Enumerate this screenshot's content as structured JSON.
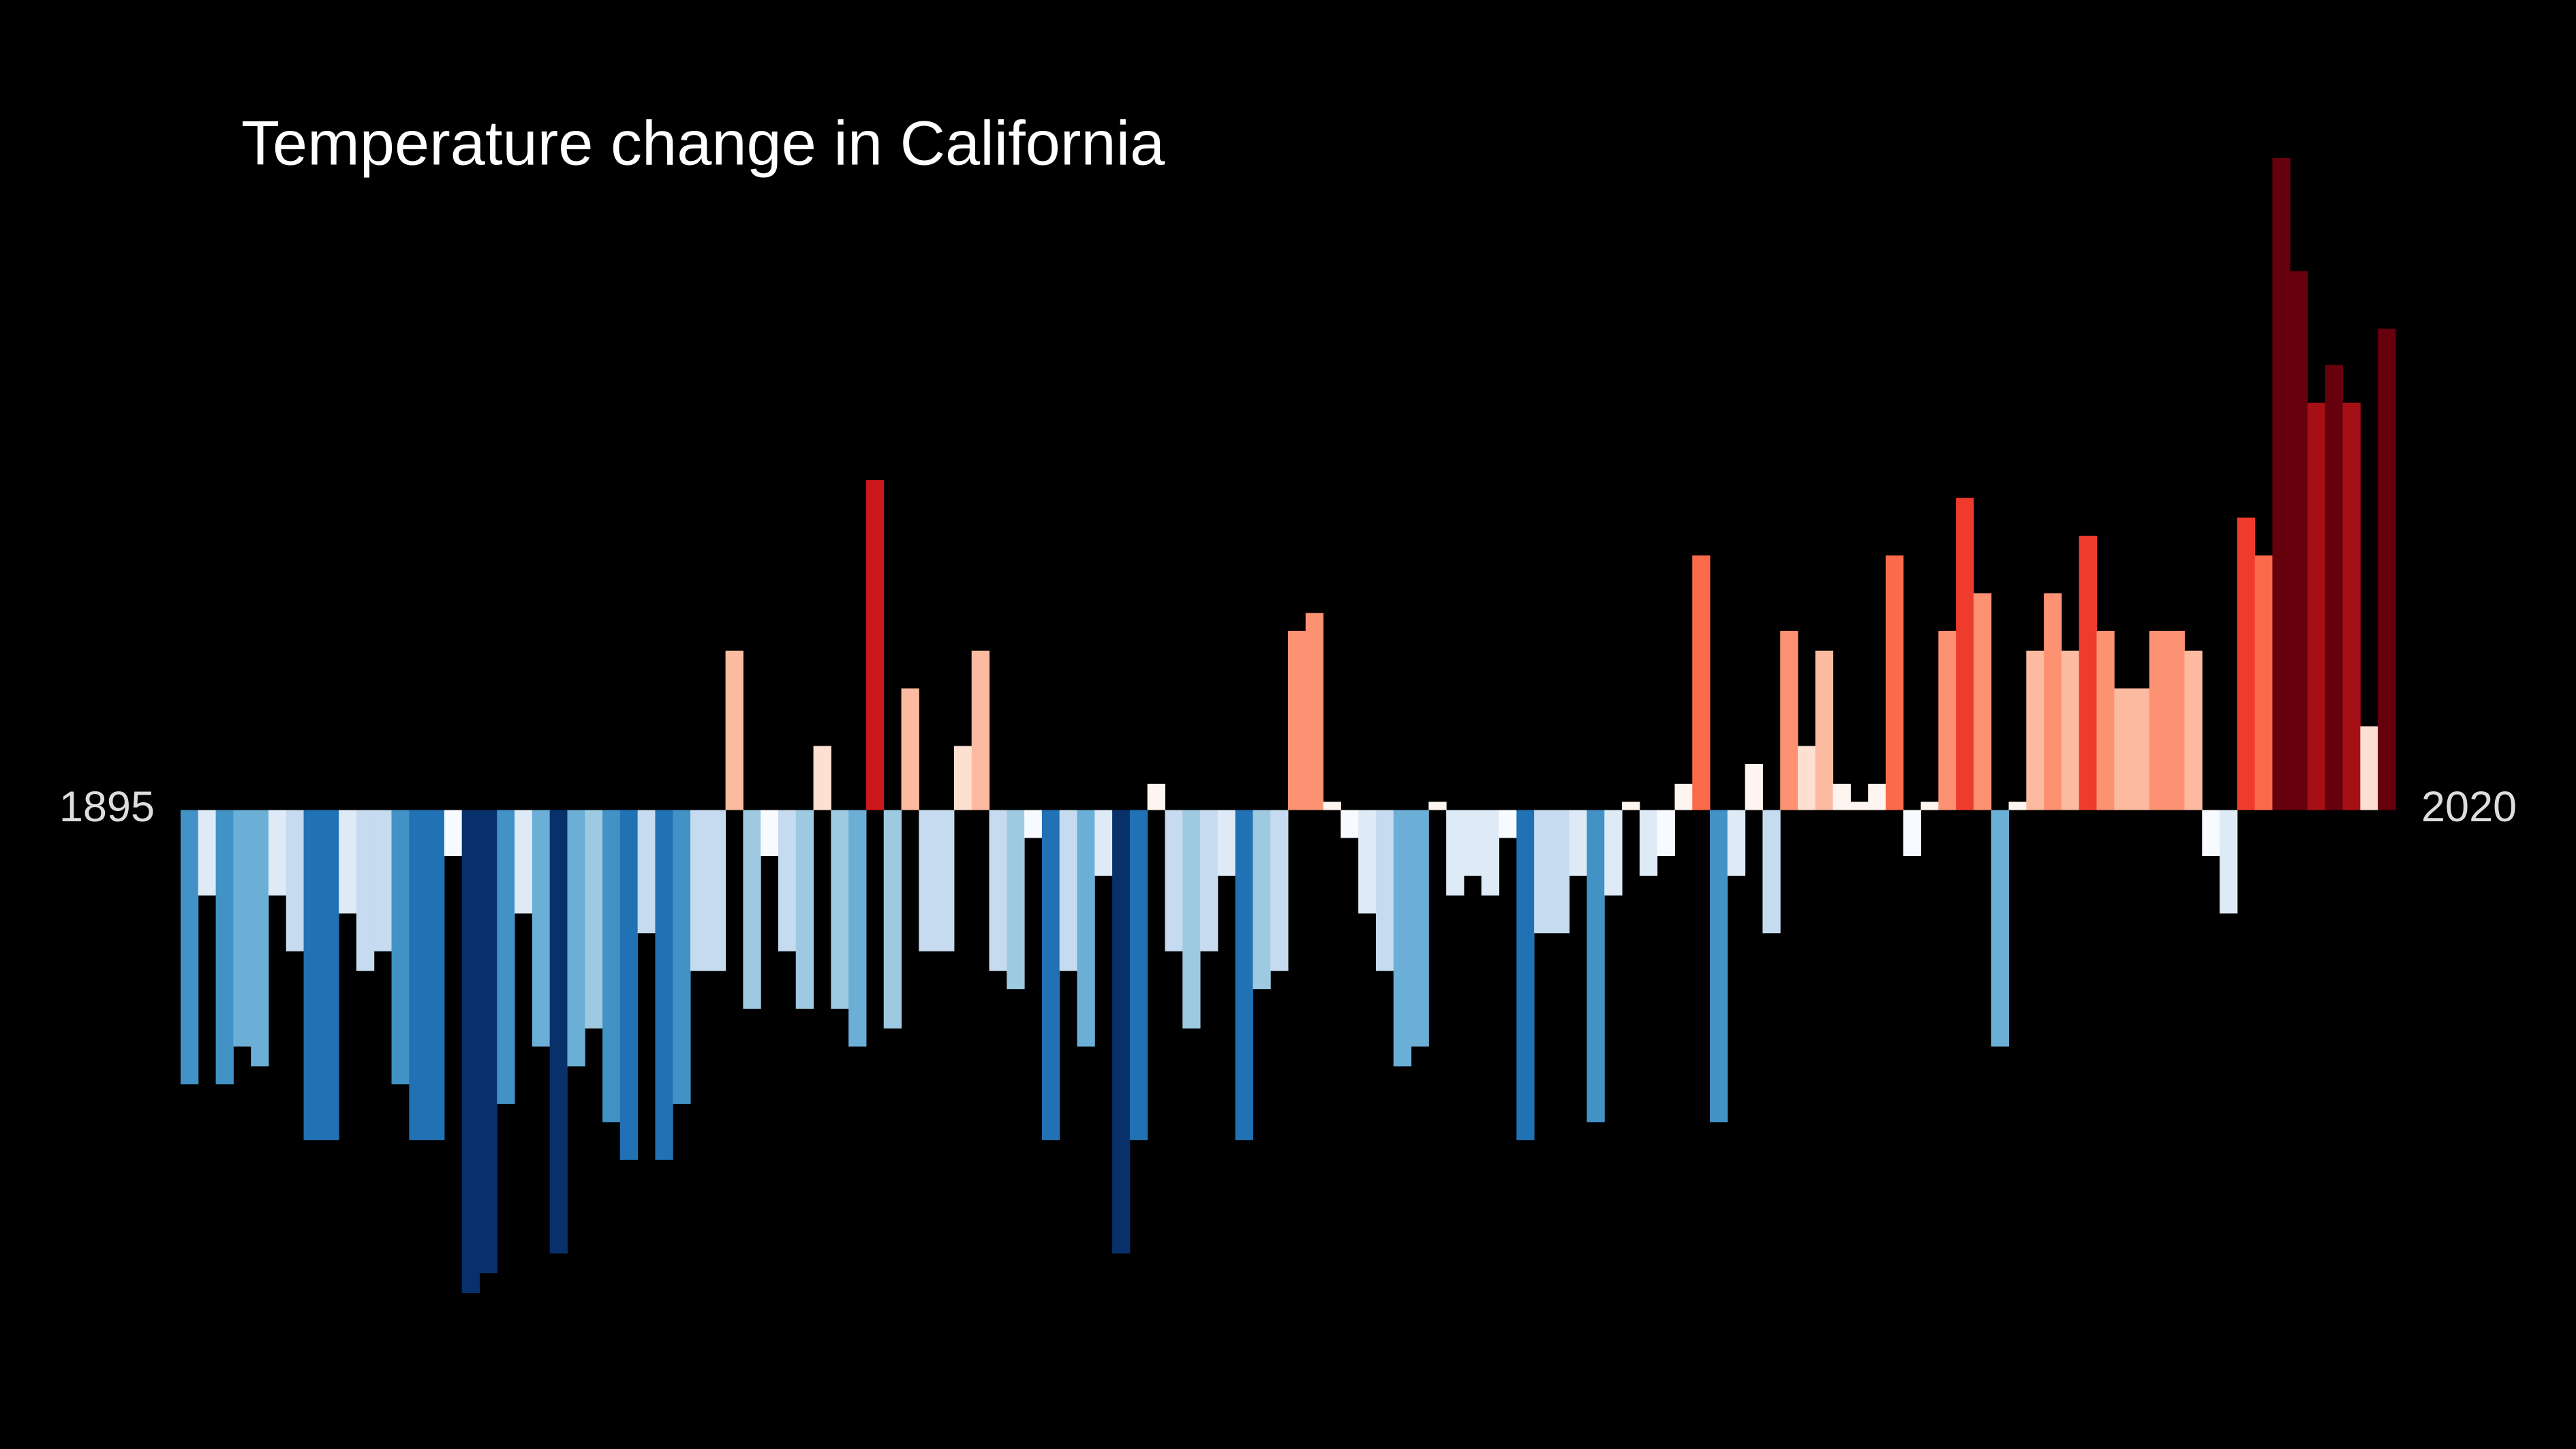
{
  "chart_data": {
    "type": "bar",
    "title": "Temperature change in California",
    "categories": [
      "1895",
      null,
      null,
      null,
      null,
      null,
      null,
      null,
      null,
      null,
      null,
      null,
      null,
      null,
      null,
      null,
      null,
      null,
      null,
      null,
      null,
      null,
      null,
      null,
      null,
      null,
      null,
      null,
      null,
      null,
      null,
      null,
      null,
      null,
      null,
      null,
      null,
      null,
      null,
      null,
      null,
      null,
      null,
      null,
      null,
      null,
      null,
      null,
      null,
      null,
      null,
      null,
      null,
      null,
      null,
      null,
      null,
      null,
      null,
      null,
      null,
      null,
      null,
      null,
      null,
      null,
      null,
      null,
      null,
      null,
      null,
      null,
      null,
      null,
      null,
      null,
      null,
      null,
      null,
      null,
      null,
      null,
      null,
      null,
      null,
      null,
      null,
      null,
      null,
      null,
      null,
      null,
      null,
      null,
      null,
      null,
      null,
      null,
      null,
      null,
      null,
      null,
      null,
      null,
      null,
      null,
      null,
      null,
      null,
      null,
      null,
      null,
      null,
      null,
      null,
      null,
      null,
      null,
      null,
      null,
      null,
      null,
      null,
      null,
      null,
      "2020"
    ],
    "values": [
      -1.67,
      -0.52,
      -1.67,
      -1.44,
      -1.56,
      -0.52,
      -0.86,
      -2.01,
      -2.01,
      -0.63,
      -0.98,
      -0.86,
      -1.67,
      -2.01,
      -2.01,
      -0.28,
      -2.94,
      -2.82,
      -1.79,
      -0.63,
      -1.44,
      -2.7,
      -1.56,
      -1.33,
      -1.9,
      -2.13,
      -0.75,
      -2.13,
      -1.79,
      -0.98,
      -0.98,
      0.97,
      -1.21,
      -0.28,
      -0.86,
      -1.21,
      0.39,
      -1.21,
      -1.44,
      2.01,
      -1.33,
      0.74,
      -0.86,
      -0.86,
      0.39,
      0.97,
      -0.98,
      -1.09,
      -0.17,
      -2.01,
      -0.98,
      -1.44,
      -0.4,
      -2.7,
      -2.01,
      0.16,
      -0.86,
      -1.33,
      -0.86,
      -0.4,
      -2.01,
      -1.09,
      -0.98,
      1.09,
      1.2,
      0.05,
      -0.17,
      -0.63,
      -0.98,
      -1.56,
      -1.44,
      0.05,
      -0.52,
      -0.4,
      -0.52,
      -0.17,
      -2.01,
      -0.75,
      -0.75,
      -0.4,
      -1.9,
      -0.52,
      0.05,
      -0.4,
      -0.28,
      0.16,
      1.55,
      -1.9,
      -0.4,
      0.28,
      -0.75,
      1.09,
      0.39,
      0.97,
      0.16,
      0.05,
      0.16,
      1.55,
      -0.28,
      0.05,
      1.09,
      1.9,
      1.32,
      -1.44,
      0.05,
      0.97,
      1.32,
      0.97,
      1.67,
      1.09,
      0.74,
      0.74,
      1.09,
      1.09,
      0.97,
      -0.28,
      -0.63,
      1.78,
      1.55,
      3.97,
      3.28,
      2.48,
      2.71,
      2.48,
      0.51,
      2.93
    ],
    "ylim": [
      -3.5,
      4.5
    ],
    "grid": false,
    "colormap": [
      "#08306b",
      "#08519c",
      "#2171b5",
      "#4292c6",
      "#6baed6",
      "#9ecae1",
      "#c6dbef",
      "#deebf7",
      "#f7fbff",
      "#fff5f0",
      "#fee0d2",
      "#fcbba1",
      "#fc9272",
      "#fb6a4a",
      "#ef3b2c",
      "#cb181d",
      "#a50f15",
      "#67000d"
    ],
    "colorlim": [
      -3,
      3
    ]
  }
}
